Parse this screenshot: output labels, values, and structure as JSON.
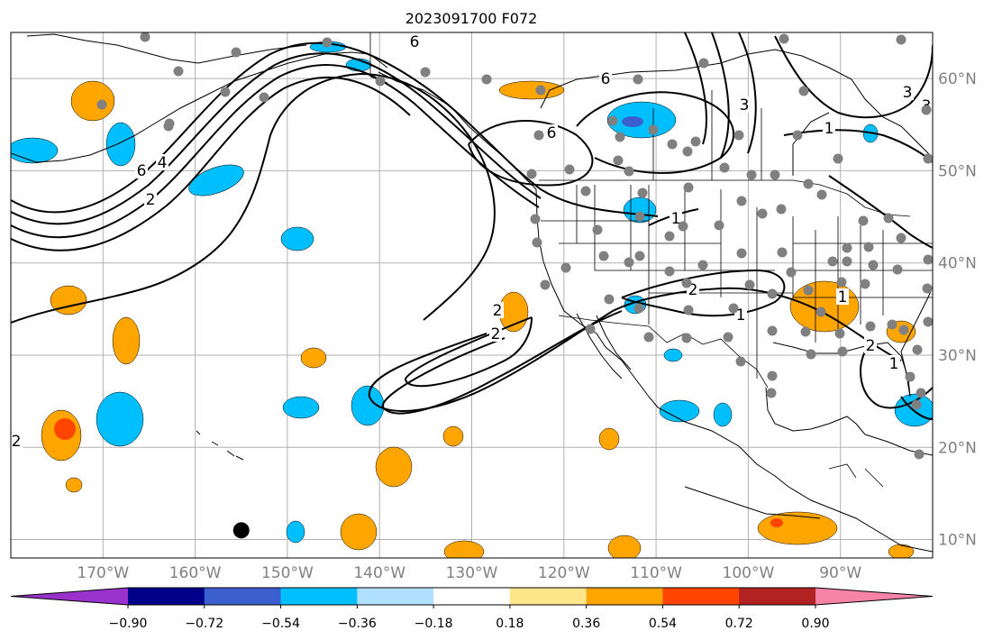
{
  "title": "2023091700 F072",
  "map": {
    "lon_range": [
      -180,
      -80
    ],
    "lat_range": [
      8,
      65
    ],
    "lon_ticks": [
      {
        "lon": -170,
        "label": "170°W"
      },
      {
        "lon": -160,
        "label": "160°W"
      },
      {
        "lon": -150,
        "label": "150°W"
      },
      {
        "lon": -140,
        "label": "140°W"
      },
      {
        "lon": -130,
        "label": "130°W"
      },
      {
        "lon": -120,
        "label": "120°W"
      },
      {
        "lon": -110,
        "label": "110°W"
      },
      {
        "lon": -100,
        "label": "100°W"
      },
      {
        "lon": -90,
        "label": "90°W"
      }
    ],
    "lat_ticks": [
      {
        "lat": 60,
        "label": "60°N"
      },
      {
        "lat": 50,
        "label": "50°N"
      },
      {
        "lat": 40,
        "label": "40°N"
      },
      {
        "lat": 30,
        "label": "30°N"
      },
      {
        "lat": 20,
        "label": "20°N"
      },
      {
        "lat": 10,
        "label": "10°N"
      }
    ],
    "grid": true,
    "colors": {
      "station_dot": "#808080",
      "contour": "#000000",
      "grid": "#b0b0b0",
      "marker": "#000000"
    },
    "contour_labels": [
      "6",
      "6",
      "6",
      "6",
      "4",
      "2",
      "1",
      "2",
      "1",
      "3",
      "2",
      "2",
      "3",
      "1",
      "1",
      "1",
      "2",
      "2",
      "3"
    ],
    "marker": {
      "lon": -155,
      "lat": 11
    }
  },
  "colorbar": {
    "tick_labels": [
      "−0.90",
      "−0.72",
      "−0.54",
      "−0.36",
      "−0.18",
      "0.18",
      "0.36",
      "0.54",
      "0.72",
      "0.90"
    ],
    "colors": [
      "#9932cc",
      "#00008b",
      "#3c5fd0",
      "#00bfff",
      "#b0e0ff",
      "#ffffff",
      "#fde68a",
      "#ffa500",
      "#ff4500",
      "#b22222",
      "#f883a9"
    ],
    "extend": "both"
  }
}
